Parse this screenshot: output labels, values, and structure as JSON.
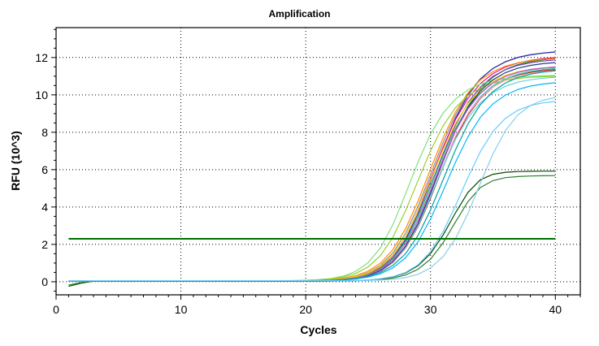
{
  "chart_data": {
    "type": "line",
    "title": "Amplification",
    "xlabel": "Cycles",
    "ylabel": "RFU (10^3)",
    "xlim": [
      0,
      42
    ],
    "ylim": [
      -0.7,
      13.6
    ],
    "x_ticks": [
      0,
      10,
      20,
      30,
      40
    ],
    "y_ticks": [
      0,
      2,
      4,
      6,
      8,
      10,
      12
    ],
    "grid": true,
    "grid_style": "dotted",
    "legend": "none",
    "threshold": {
      "value": 2.3,
      "color": "#007000"
    },
    "x": [
      1,
      2,
      3,
      4,
      5,
      6,
      7,
      8,
      9,
      10,
      11,
      12,
      13,
      14,
      15,
      16,
      17,
      18,
      19,
      20,
      21,
      22,
      23,
      24,
      25,
      26,
      27,
      28,
      29,
      30,
      31,
      32,
      33,
      34,
      35,
      36,
      37,
      38,
      39,
      40
    ],
    "series": [
      {
        "color": "#8f8f8f",
        "values": [
          0.04,
          0.04,
          0.04,
          0.04,
          0.04,
          0.04,
          0.04,
          0.04,
          0.04,
          0.04,
          0.04,
          0.04,
          0.04,
          0.04,
          0.04,
          0.04,
          0.04,
          0.04,
          0.05,
          0.05,
          0.07,
          0.1,
          0.16,
          0.27,
          0.49,
          0.88,
          1.55,
          2.6,
          4.04,
          5.74,
          7.44,
          8.93,
          10.06,
          10.87,
          11.41,
          11.76,
          11.99,
          12.14,
          12.23,
          12.29
        ]
      },
      {
        "color": "#2a2ab0",
        "values": [
          0.03,
          0.03,
          0.03,
          0.03,
          0.03,
          0.03,
          0.03,
          0.03,
          0.03,
          0.03,
          0.03,
          0.03,
          0.03,
          0.03,
          0.03,
          0.03,
          0.03,
          0.03,
          0.04,
          0.04,
          0.05,
          0.07,
          0.12,
          0.21,
          0.39,
          0.72,
          1.3,
          2.26,
          3.65,
          5.37,
          7.16,
          8.76,
          9.98,
          10.85,
          11.42,
          11.78,
          12.01,
          12.15,
          12.24,
          12.3
        ]
      },
      {
        "color": "#0f8f0f",
        "values": [
          0.02,
          0.02,
          0.02,
          0.02,
          0.02,
          0.02,
          0.02,
          0.02,
          0.02,
          0.02,
          0.02,
          0.02,
          0.02,
          0.02,
          0.02,
          0.02,
          0.02,
          0.02,
          0.03,
          0.03,
          0.04,
          0.06,
          0.1,
          0.17,
          0.32,
          0.59,
          1.08,
          1.9,
          3.13,
          4.74,
          6.48,
          8.1,
          9.39,
          10.32,
          10.95,
          11.36,
          11.62,
          11.78,
          11.88,
          11.94
        ]
      },
      {
        "color": "#e0157c",
        "values": [
          0.03,
          0.03,
          0.03,
          0.03,
          0.03,
          0.03,
          0.03,
          0.03,
          0.03,
          0.03,
          0.03,
          0.03,
          0.03,
          0.03,
          0.03,
          0.03,
          0.03,
          0.03,
          0.04,
          0.04,
          0.05,
          0.08,
          0.13,
          0.23,
          0.43,
          0.79,
          1.41,
          2.42,
          3.83,
          5.51,
          7.2,
          8.68,
          9.81,
          10.61,
          11.14,
          11.49,
          11.71,
          11.85,
          11.94,
          11.99
        ]
      },
      {
        "color": "#22b0b0",
        "values": [
          0.04,
          0.04,
          0.04,
          0.04,
          0.04,
          0.04,
          0.04,
          0.04,
          0.04,
          0.04,
          0.04,
          0.04,
          0.04,
          0.04,
          0.04,
          0.04,
          0.04,
          0.04,
          0.04,
          0.05,
          0.06,
          0.08,
          0.12,
          0.2,
          0.34,
          0.61,
          1.08,
          1.84,
          3.0,
          4.52,
          6.19,
          7.76,
          9.01,
          9.9,
          10.49,
          10.87,
          11.1,
          11.25,
          11.34,
          11.4
        ]
      },
      {
        "color": "#ff8c00",
        "values": [
          0.04,
          0.04,
          0.04,
          0.04,
          0.04,
          0.04,
          0.04,
          0.04,
          0.04,
          0.04,
          0.04,
          0.04,
          0.04,
          0.04,
          0.04,
          0.04,
          0.04,
          0.04,
          0.05,
          0.06,
          0.08,
          0.12,
          0.19,
          0.32,
          0.57,
          1.0,
          1.73,
          2.84,
          4.32,
          6.03,
          7.69,
          9.09,
          10.11,
          10.8,
          11.25,
          11.54,
          11.72,
          11.83,
          11.9,
          11.94
        ]
      },
      {
        "color": "#7a3db8",
        "values": [
          0.03,
          0.03,
          0.03,
          0.03,
          0.03,
          0.03,
          0.03,
          0.03,
          0.03,
          0.03,
          0.03,
          0.03,
          0.03,
          0.03,
          0.03,
          0.03,
          0.03,
          0.03,
          0.04,
          0.04,
          0.05,
          0.08,
          0.12,
          0.21,
          0.38,
          0.7,
          1.25,
          2.16,
          3.48,
          5.13,
          6.85,
          8.39,
          9.58,
          10.42,
          10.99,
          11.35,
          11.58,
          11.72,
          11.81,
          11.87
        ]
      },
      {
        "color": "#c62020",
        "values": [
          0.02,
          0.02,
          0.02,
          0.02,
          0.02,
          0.02,
          0.02,
          0.02,
          0.02,
          0.02,
          0.02,
          0.02,
          0.02,
          0.02,
          0.02,
          0.02,
          0.02,
          0.02,
          0.03,
          0.03,
          0.04,
          0.06,
          0.1,
          0.17,
          0.31,
          0.57,
          1.03,
          1.8,
          2.95,
          4.47,
          6.13,
          7.69,
          8.92,
          9.81,
          10.41,
          10.8,
          11.04,
          11.2,
          11.29,
          11.35
        ]
      },
      {
        "color": "#7fe07f",
        "values": [
          0.05,
          0.05,
          0.05,
          0.05,
          0.05,
          0.05,
          0.05,
          0.05,
          0.05,
          0.05,
          0.05,
          0.05,
          0.05,
          0.05,
          0.05,
          0.05,
          0.05,
          0.06,
          0.06,
          0.08,
          0.11,
          0.17,
          0.3,
          0.55,
          1.02,
          1.82,
          3.07,
          4.7,
          6.41,
          7.91,
          9.02,
          9.78,
          10.27,
          10.58,
          10.77,
          10.88,
          10.95,
          11.0,
          11.02,
          11.04
        ]
      },
      {
        "color": "#9acd32",
        "values": [
          0.05,
          0.05,
          0.05,
          0.05,
          0.05,
          0.05,
          0.05,
          0.05,
          0.05,
          0.05,
          0.05,
          0.05,
          0.05,
          0.05,
          0.05,
          0.05,
          0.05,
          0.05,
          0.06,
          0.08,
          0.1,
          0.15,
          0.25,
          0.44,
          0.79,
          1.41,
          2.4,
          3.8,
          5.42,
          7.01,
          8.34,
          9.31,
          9.96,
          10.37,
          10.63,
          10.78,
          10.88,
          10.94,
          10.97,
          10.99
        ]
      },
      {
        "color": "#00b5ff",
        "values": [
          0.04,
          0.04,
          0.04,
          0.04,
          0.04,
          0.04,
          0.04,
          0.04,
          0.04,
          0.04,
          0.04,
          0.04,
          0.04,
          0.04,
          0.04,
          0.04,
          0.04,
          0.04,
          0.04,
          0.05,
          0.06,
          0.07,
          0.1,
          0.15,
          0.25,
          0.43,
          0.75,
          1.28,
          2.14,
          3.36,
          4.85,
          6.4,
          7.76,
          8.8,
          9.52,
          9.99,
          10.29,
          10.47,
          10.58,
          10.65
        ]
      },
      {
        "color": "#ffb6c1",
        "values": [
          0.03,
          0.03,
          0.03,
          0.03,
          0.03,
          0.03,
          0.03,
          0.03,
          0.03,
          0.03,
          0.03,
          0.03,
          0.03,
          0.03,
          0.03,
          0.03,
          0.03,
          0.03,
          0.04,
          0.04,
          0.05,
          0.07,
          0.11,
          0.18,
          0.32,
          0.58,
          1.04,
          1.82,
          3.0,
          4.55,
          6.24,
          7.79,
          9.0,
          9.85,
          10.42,
          10.78,
          11.01,
          11.15,
          11.24,
          11.29
        ]
      },
      {
        "color": "#ffd700",
        "values": [
          0.04,
          0.04,
          0.04,
          0.04,
          0.04,
          0.04,
          0.04,
          0.04,
          0.04,
          0.04,
          0.04,
          0.04,
          0.04,
          0.04,
          0.04,
          0.04,
          0.04,
          0.04,
          0.04,
          0.05,
          0.07,
          0.1,
          0.15,
          0.26,
          0.46,
          0.82,
          1.44,
          2.43,
          3.81,
          5.44,
          7.07,
          8.48,
          9.53,
          10.26,
          10.74,
          11.05,
          11.24,
          11.36,
          11.43,
          11.48
        ]
      },
      {
        "color": "#20c060",
        "values": [
          0.03,
          0.03,
          0.03,
          0.03,
          0.03,
          0.03,
          0.03,
          0.03,
          0.03,
          0.03,
          0.03,
          0.03,
          0.03,
          0.03,
          0.03,
          0.03,
          0.03,
          0.03,
          0.04,
          0.04,
          0.06,
          0.08,
          0.13,
          0.22,
          0.39,
          0.71,
          1.26,
          2.16,
          3.47,
          5.08,
          6.74,
          8.21,
          9.33,
          10.12,
          10.65,
          10.99,
          11.2,
          11.33,
          11.42,
          11.47
        ]
      },
      {
        "color": "#5fd0e6",
        "values": [
          0.03,
          0.03,
          0.03,
          0.03,
          0.03,
          0.03,
          0.03,
          0.03,
          0.03,
          0.03,
          0.03,
          0.03,
          0.03,
          0.03,
          0.03,
          0.03,
          0.03,
          0.03,
          0.04,
          0.04,
          0.05,
          0.07,
          0.11,
          0.19,
          0.34,
          0.61,
          1.08,
          1.86,
          3.02,
          4.53,
          6.14,
          7.62,
          8.77,
          9.58,
          10.12,
          10.46,
          10.68,
          10.81,
          10.89,
          10.94
        ]
      },
      {
        "color": "#1e3c8c",
        "values": [
          0.03,
          0.03,
          0.03,
          0.03,
          0.03,
          0.03,
          0.03,
          0.03,
          0.03,
          0.03,
          0.03,
          0.03,
          0.03,
          0.03,
          0.03,
          0.03,
          0.03,
          0.03,
          0.04,
          0.04,
          0.05,
          0.07,
          0.11,
          0.18,
          0.33,
          0.6,
          1.08,
          1.89,
          3.11,
          4.71,
          6.46,
          8.07,
          9.33,
          10.22,
          10.81,
          11.19,
          11.43,
          11.58,
          11.67,
          11.73
        ]
      },
      {
        "color": "#d04fd0",
        "values": [
          0.03,
          0.03,
          0.03,
          0.03,
          0.03,
          0.03,
          0.03,
          0.03,
          0.03,
          0.03,
          0.03,
          0.03,
          0.03,
          0.03,
          0.03,
          0.03,
          0.03,
          0.03,
          0.04,
          0.04,
          0.05,
          0.07,
          0.12,
          0.2,
          0.36,
          0.66,
          1.18,
          2.03,
          3.29,
          4.88,
          6.56,
          8.07,
          9.25,
          10.08,
          10.64,
          10.99,
          11.22,
          11.36,
          11.44,
          11.5
        ]
      },
      {
        "color": "#00a09a",
        "values": [
          0.04,
          0.04,
          0.04,
          0.04,
          0.04,
          0.04,
          0.04,
          0.04,
          0.04,
          0.04,
          0.04,
          0.04,
          0.04,
          0.04,
          0.04,
          0.04,
          0.04,
          0.04,
          0.04,
          0.05,
          0.06,
          0.08,
          0.11,
          0.17,
          0.29,
          0.5,
          0.88,
          1.5,
          2.48,
          3.84,
          5.45,
          7.06,
          8.45,
          9.48,
          10.18,
          10.64,
          10.93,
          11.11,
          11.22,
          11.29
        ]
      },
      {
        "color": "#004d00",
        "values": [
          -0.25,
          -0.08,
          0.03,
          0.03,
          0.03,
          0.03,
          0.03,
          0.03,
          0.03,
          0.03,
          0.03,
          0.03,
          0.03,
          0.03,
          0.03,
          0.03,
          0.03,
          0.03,
          0.03,
          0.03,
          0.03,
          0.04,
          0.05,
          0.06,
          0.09,
          0.15,
          0.26,
          0.47,
          0.86,
          1.51,
          2.49,
          3.69,
          4.78,
          5.46,
          5.75,
          5.86,
          5.9,
          5.91,
          5.92,
          5.92
        ]
      },
      {
        "color": "#2e7d2e",
        "values": [
          -0.18,
          -0.04,
          0.03,
          0.03,
          0.03,
          0.03,
          0.03,
          0.03,
          0.03,
          0.03,
          0.03,
          0.03,
          0.03,
          0.03,
          0.03,
          0.03,
          0.03,
          0.03,
          0.03,
          0.03,
          0.03,
          0.04,
          0.05,
          0.06,
          0.08,
          0.12,
          0.2,
          0.36,
          0.67,
          1.21,
          2.08,
          3.2,
          4.29,
          5.04,
          5.41,
          5.57,
          5.63,
          5.66,
          5.67,
          5.68
        ]
      },
      {
        "color": "#87ceeb",
        "values": [
          0.05,
          0.05,
          0.05,
          0.05,
          0.05,
          0.05,
          0.05,
          0.05,
          0.05,
          0.05,
          0.05,
          0.05,
          0.05,
          0.05,
          0.05,
          0.05,
          0.05,
          0.05,
          0.05,
          0.05,
          0.05,
          0.05,
          0.05,
          0.06,
          0.07,
          0.09,
          0.13,
          0.22,
          0.4,
          0.74,
          1.34,
          2.3,
          3.66,
          5.27,
          6.84,
          8.09,
          8.93,
          9.43,
          9.71,
          9.86
        ]
      },
      {
        "color": "#66ccff",
        "values": [
          0.05,
          0.05,
          0.05,
          0.05,
          0.05,
          0.05,
          0.05,
          0.05,
          0.05,
          0.05,
          0.05,
          0.05,
          0.05,
          0.05,
          0.05,
          0.05,
          0.05,
          0.05,
          0.05,
          0.05,
          0.05,
          0.05,
          0.06,
          0.07,
          0.1,
          0.16,
          0.28,
          0.5,
          0.91,
          1.61,
          2.68,
          4.07,
          5.58,
          6.97,
          8.04,
          8.75,
          9.18,
          9.43,
          9.57,
          9.65
        ]
      }
    ]
  }
}
